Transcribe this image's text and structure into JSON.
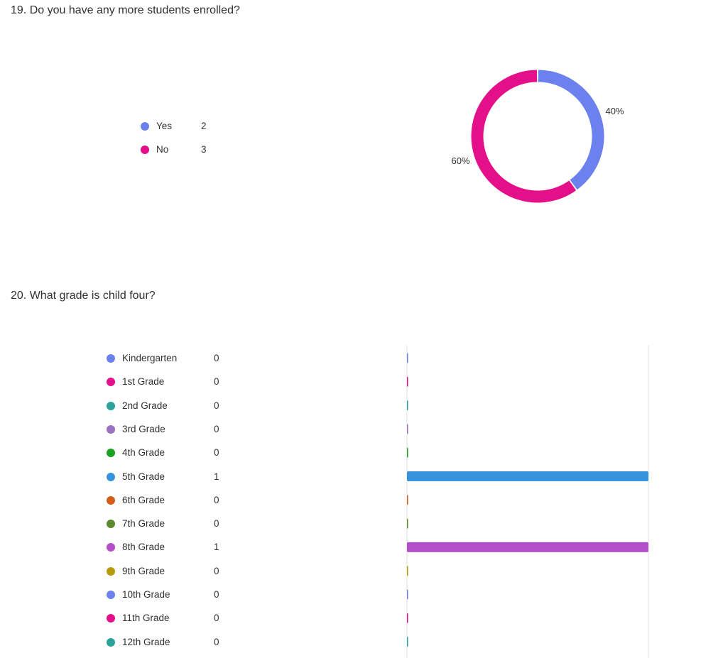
{
  "questions": [
    {
      "title": "19. Do you have any more students enrolled?"
    },
    {
      "title": "20. What grade is child four?"
    }
  ],
  "chart_data": [
    {
      "type": "pie",
      "donut": true,
      "categories": [
        "Yes",
        "No"
      ],
      "values": [
        2,
        3
      ],
      "percent_labels": [
        "40%",
        "60%"
      ],
      "colors": [
        "#6b82ee",
        "#e3108a"
      ],
      "legend_position": "left"
    },
    {
      "type": "bar",
      "orientation": "horizontal",
      "categories": [
        "Kindergarten",
        "1st Grade",
        "2nd Grade",
        "3rd Grade",
        "4th Grade",
        "5th Grade",
        "6th Grade",
        "7th Grade",
        "8th Grade",
        "9th Grade",
        "10th Grade",
        "11th Grade",
        "12th Grade"
      ],
      "values": [
        0,
        0,
        0,
        0,
        0,
        1,
        0,
        0,
        1,
        0,
        0,
        0,
        0
      ],
      "colors": [
        "#6b82ee",
        "#e3108a",
        "#2ba39b",
        "#9b72c2",
        "#1aa320",
        "#3793de",
        "#d35e1c",
        "#5b8a2d",
        "#b34fc8",
        "#b79a0d",
        "#6b82ee",
        "#e3108a",
        "#2ba39b"
      ],
      "xlim": [
        0,
        1
      ],
      "legend_position": "left"
    }
  ]
}
